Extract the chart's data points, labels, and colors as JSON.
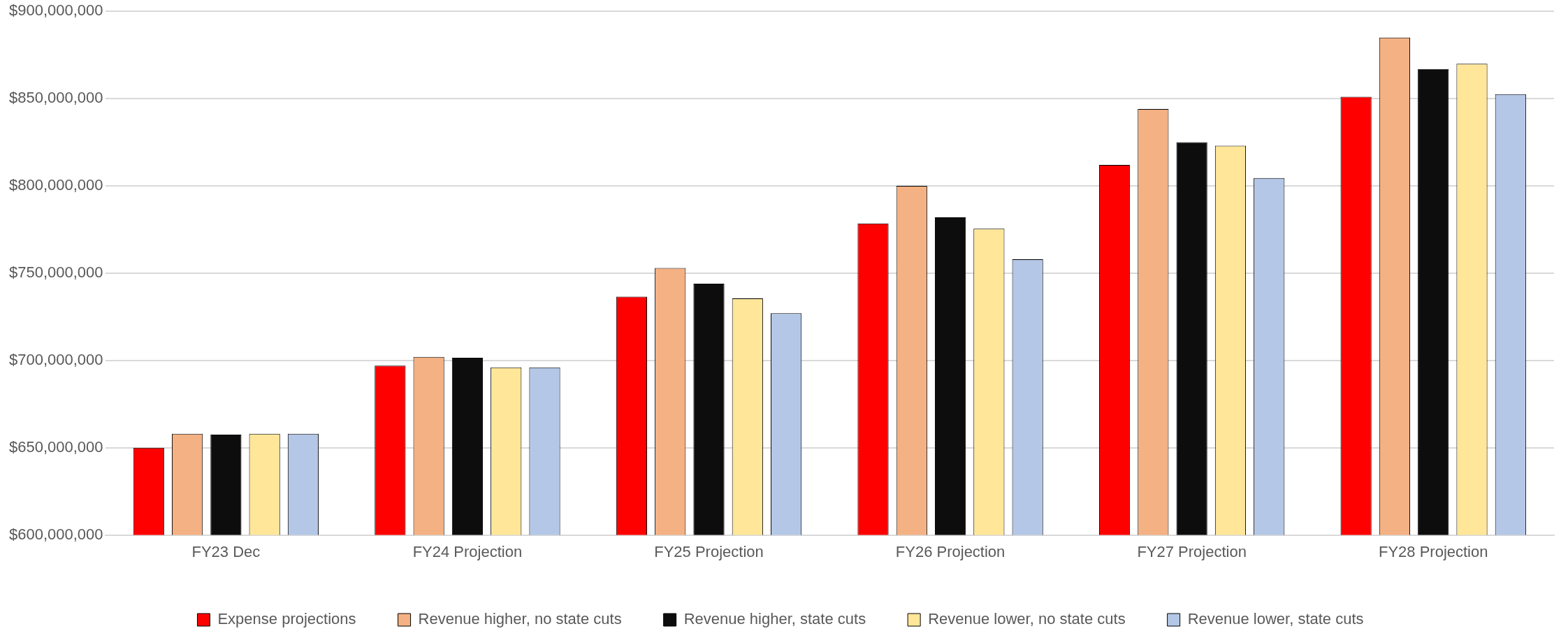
{
  "chart_data": {
    "type": "bar",
    "categories": [
      "FY23 Dec",
      "FY24 Projection",
      "FY25 Projection",
      "FY26 Projection",
      "FY27 Projection",
      "FY28 Projection"
    ],
    "series": [
      {
        "name": "Expense projections",
        "color": "#ff0000",
        "values": [
          650000000,
          697000000,
          736500000,
          778500000,
          812000000,
          851000000
        ]
      },
      {
        "name": "Revenue higher, no state cuts",
        "color": "#f4b183",
        "values": [
          658000000,
          702000000,
          753000000,
          800000000,
          844000000,
          885000000
        ]
      },
      {
        "name": "Revenue higher, state cuts",
        "color": "#0d0d0d",
        "values": [
          657500000,
          701500000,
          744000000,
          782000000,
          825000000,
          867000000
        ]
      },
      {
        "name": "Revenue lower, no state cuts",
        "color": "#ffe699",
        "values": [
          658000000,
          696000000,
          735500000,
          775500000,
          823000000,
          870000000
        ]
      },
      {
        "name": "Revenue lower, state cuts",
        "color": "#b4c7e7",
        "values": [
          658000000,
          696000000,
          727000000,
          758000000,
          804500000,
          852500000
        ]
      }
    ],
    "ylim": [
      600000000,
      900000000
    ],
    "yticks": [
      {
        "value": 600000000,
        "label": "$600,000,000"
      },
      {
        "value": 650000000,
        "label": "$650,000,000"
      },
      {
        "value": 700000000,
        "label": "$700,000,000"
      },
      {
        "value": 750000000,
        "label": "$750,000,000"
      },
      {
        "value": 800000000,
        "label": "$800,000,000"
      },
      {
        "value": 850000000,
        "label": "$850,000,000"
      },
      {
        "value": 900000000,
        "label": "$900,000,000"
      }
    ],
    "grid": "y",
    "legend": "bottom"
  }
}
